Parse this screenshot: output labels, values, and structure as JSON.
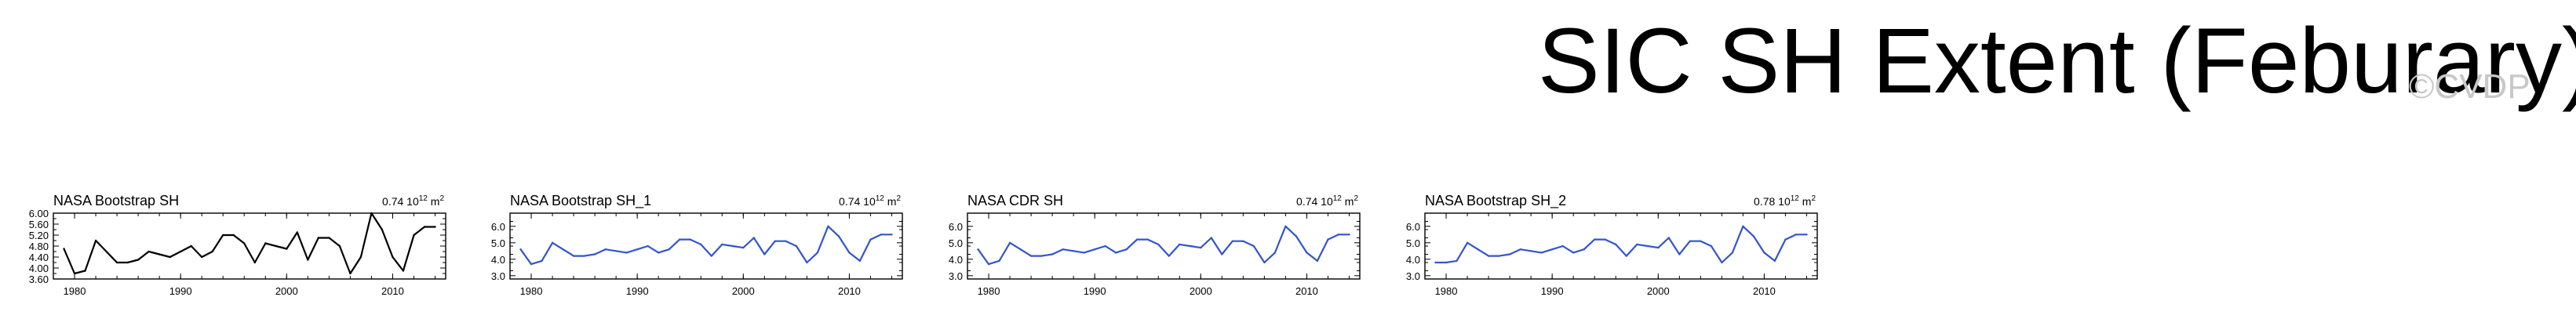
{
  "page": {
    "title": "SIC SH Extent (Feburary)",
    "watermark": "©CVDP"
  },
  "chart_data": [
    {
      "type": "line",
      "title": "NASA Bootstrap SH",
      "stat_value": "0.74",
      "stat_unit_prefix": "10",
      "stat_unit_exp": "12",
      "stat_unit_suffix": "m",
      "stat_unit_suffix_exp": "2",
      "line_color": "#000000",
      "xlim": [
        1978,
        2015
      ],
      "ylim": [
        3.6,
        6.0
      ],
      "x_ticks": [
        1980,
        1990,
        2000,
        2010
      ],
      "y_ticks": [
        "3.60",
        "4.00",
        "4.40",
        "4.80",
        "5.20",
        "5.60",
        "6.00"
      ],
      "y_tick_values": [
        3.6,
        4.0,
        4.4,
        4.8,
        5.2,
        5.6,
        6.0
      ],
      "x": [
        1979,
        1980,
        1981,
        1982,
        1983,
        1984,
        1985,
        1986,
        1987,
        1988,
        1989,
        1990,
        1991,
        1992,
        1993,
        1994,
        1995,
        1996,
        1997,
        1998,
        1999,
        2000,
        2001,
        2002,
        2003,
        2004,
        2005,
        2006,
        2007,
        2008,
        2009,
        2010,
        2011,
        2012,
        2013,
        2014
      ],
      "y": [
        4.7,
        3.8,
        3.9,
        5.0,
        4.6,
        4.2,
        4.2,
        4.3,
        4.6,
        4.5,
        4.4,
        4.6,
        4.8,
        4.4,
        4.6,
        5.2,
        5.2,
        4.9,
        4.2,
        4.9,
        4.8,
        4.7,
        5.3,
        4.3,
        5.1,
        5.1,
        4.8,
        3.8,
        4.4,
        6.0,
        5.4,
        4.4,
        3.9,
        5.2,
        5.5,
        5.5
      ]
    },
    {
      "type": "line",
      "title": "NASA Bootstrap SH_1",
      "stat_value": "0.74",
      "stat_unit_prefix": "10",
      "stat_unit_exp": "12",
      "stat_unit_suffix": "m",
      "stat_unit_suffix_exp": "2",
      "line_color": "#3355cc",
      "xlim": [
        1978,
        2015
      ],
      "ylim": [
        2.8,
        6.8
      ],
      "x_ticks": [
        1980,
        1990,
        2000,
        2010
      ],
      "y_ticks": [
        "3.0",
        "4.0",
        "5.0",
        "6.0"
      ],
      "y_tick_values": [
        3.0,
        4.0,
        5.0,
        6.0
      ],
      "x": [
        1979,
        1980,
        1981,
        1982,
        1983,
        1984,
        1985,
        1986,
        1987,
        1988,
        1989,
        1990,
        1991,
        1992,
        1993,
        1994,
        1995,
        1996,
        1997,
        1998,
        1999,
        2000,
        2001,
        2002,
        2003,
        2004,
        2005,
        2006,
        2007,
        2008,
        2009,
        2010,
        2011,
        2012,
        2013,
        2014
      ],
      "y": [
        4.6,
        3.7,
        3.9,
        5.0,
        4.6,
        4.2,
        4.2,
        4.3,
        4.6,
        4.5,
        4.4,
        4.6,
        4.8,
        4.4,
        4.6,
        5.2,
        5.2,
        4.9,
        4.2,
        4.9,
        4.8,
        4.7,
        5.3,
        4.3,
        5.1,
        5.1,
        4.8,
        3.8,
        4.4,
        6.0,
        5.4,
        4.4,
        3.9,
        5.2,
        5.5,
        5.5
      ]
    },
    {
      "type": "line",
      "title": "NASA CDR SH",
      "stat_value": "0.74",
      "stat_unit_prefix": "10",
      "stat_unit_exp": "12",
      "stat_unit_suffix": "m",
      "stat_unit_suffix_exp": "2",
      "line_color": "#3355cc",
      "xlim": [
        1978,
        2015
      ],
      "ylim": [
        2.8,
        6.8
      ],
      "x_ticks": [
        1980,
        1990,
        2000,
        2010
      ],
      "y_ticks": [
        "3.0",
        "4.0",
        "5.0",
        "6.0"
      ],
      "y_tick_values": [
        3.0,
        4.0,
        5.0,
        6.0
      ],
      "x": [
        1979,
        1980,
        1981,
        1982,
        1983,
        1984,
        1985,
        1986,
        1987,
        1988,
        1989,
        1990,
        1991,
        1992,
        1993,
        1994,
        1995,
        1996,
        1997,
        1998,
        1999,
        2000,
        2001,
        2002,
        2003,
        2004,
        2005,
        2006,
        2007,
        2008,
        2009,
        2010,
        2011,
        2012,
        2013,
        2014
      ],
      "y": [
        4.6,
        3.7,
        3.9,
        5.0,
        4.6,
        4.2,
        4.2,
        4.3,
        4.6,
        4.5,
        4.4,
        4.6,
        4.8,
        4.4,
        4.6,
        5.2,
        5.2,
        4.9,
        4.2,
        4.9,
        4.8,
        4.7,
        5.3,
        4.3,
        5.1,
        5.1,
        4.8,
        3.8,
        4.4,
        6.0,
        5.4,
        4.4,
        3.9,
        5.2,
        5.5,
        5.5
      ]
    },
    {
      "type": "line",
      "title": "NASA Bootstrap SH_2",
      "stat_value": "0.78",
      "stat_unit_prefix": "10",
      "stat_unit_exp": "12",
      "stat_unit_suffix": "m",
      "stat_unit_suffix_exp": "2",
      "line_color": "#3355cc",
      "xlim": [
        1978,
        2015
      ],
      "ylim": [
        2.8,
        6.8
      ],
      "x_ticks": [
        1980,
        1990,
        2000,
        2010
      ],
      "y_ticks": [
        "3.0",
        "4.0",
        "5.0",
        "6.0"
      ],
      "y_tick_values": [
        3.0,
        4.0,
        5.0,
        6.0
      ],
      "x": [
        1979,
        1980,
        1981,
        1982,
        1983,
        1984,
        1985,
        1986,
        1987,
        1988,
        1989,
        1990,
        1991,
        1992,
        1993,
        1994,
        1995,
        1996,
        1997,
        1998,
        1999,
        2000,
        2001,
        2002,
        2003,
        2004,
        2005,
        2006,
        2007,
        2008,
        2009,
        2010,
        2011,
        2012,
        2013,
        2014
      ],
      "y": [
        3.8,
        3.8,
        3.9,
        5.0,
        4.6,
        4.2,
        4.2,
        4.3,
        4.6,
        4.5,
        4.4,
        4.6,
        4.8,
        4.4,
        4.6,
        5.2,
        5.2,
        4.9,
        4.2,
        4.9,
        4.8,
        4.7,
        5.3,
        4.3,
        5.1,
        5.1,
        4.8,
        3.8,
        4.4,
        6.0,
        5.4,
        4.4,
        3.9,
        5.2,
        5.5,
        5.5
      ]
    }
  ]
}
